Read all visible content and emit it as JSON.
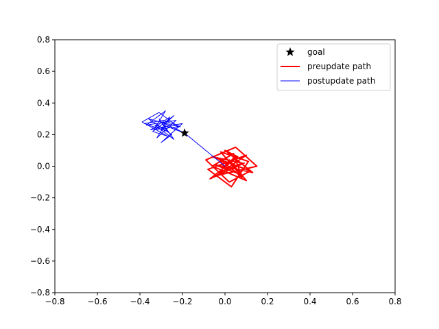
{
  "chart_data": {
    "type": "line",
    "title": "",
    "xlabel": "",
    "ylabel": "",
    "xlim": [
      -0.8,
      0.8
    ],
    "ylim": [
      -0.8,
      0.8
    ],
    "xticks": [
      -0.8,
      -0.6,
      -0.4,
      -0.2,
      0.0,
      0.2,
      0.4,
      0.6,
      0.8
    ],
    "yticks": [
      -0.8,
      -0.6,
      -0.4,
      -0.2,
      0.0,
      0.2,
      0.4,
      0.6,
      0.8
    ],
    "xtick_labels": [
      "−0.8",
      "−0.6",
      "−0.4",
      "−0.2",
      "0.0",
      "0.2",
      "0.4",
      "0.6",
      "0.8"
    ],
    "ytick_labels": [
      "−0.8",
      "−0.6",
      "−0.4",
      "−0.2",
      "0.0",
      "0.2",
      "0.4",
      "0.6",
      "0.8"
    ],
    "grid": false,
    "legend_position": "top-right",
    "goal": {
      "label": "goal",
      "x": -0.19,
      "y": 0.21,
      "marker": "star",
      "color": "#000000"
    },
    "series": [
      {
        "name": "preupdate path",
        "color": "#ff0000",
        "linewidth": 2,
        "x": [
          0.0,
          0.04,
          -0.03,
          0.08,
          -0.06,
          0.12,
          0.02,
          -0.09,
          0.05,
          0.15,
          -0.04,
          0.1,
          -0.08,
          0.03,
          0.11,
          -0.02,
          0.07,
          -0.05,
          0.13,
          0.0,
          0.06,
          -0.07,
          0.09,
          0.01,
          -0.03,
          0.08,
          0.04,
          -0.06,
          0.1,
          0.02,
          0.0
        ],
        "y": [
          0.0,
          0.05,
          -0.04,
          0.02,
          0.06,
          -0.03,
          -0.1,
          0.04,
          0.12,
          0.0,
          -0.06,
          0.07,
          -0.02,
          -0.13,
          0.03,
          0.09,
          -0.05,
          0.01,
          -0.04,
          0.1,
          0.06,
          -0.08,
          0.02,
          -0.03,
          0.05,
          -0.07,
          0.08,
          0.0,
          -0.09,
          0.04,
          0.0
        ]
      },
      {
        "name": "postupdate path",
        "color": "#0000ff",
        "linewidth": 1,
        "x": [
          0.0,
          -0.19,
          -0.29,
          -0.24,
          -0.34,
          -0.27,
          -0.39,
          -0.31,
          -0.22,
          -0.36,
          -0.25,
          -0.3,
          -0.2,
          -0.33,
          -0.28,
          -0.37,
          -0.23,
          -0.32,
          -0.26,
          -0.35,
          -0.21,
          -0.29,
          -0.38,
          -0.27,
          -0.31,
          -0.24,
          -0.33,
          -0.28,
          -0.3,
          -0.19
        ],
        "y": [
          0.0,
          0.21,
          0.26,
          0.32,
          0.22,
          0.19,
          0.28,
          0.34,
          0.25,
          0.3,
          0.2,
          0.15,
          0.27,
          0.24,
          0.35,
          0.26,
          0.29,
          0.18,
          0.31,
          0.23,
          0.25,
          0.29,
          0.27,
          0.22,
          0.3,
          0.17,
          0.26,
          0.24,
          0.28,
          0.21
        ]
      }
    ]
  }
}
